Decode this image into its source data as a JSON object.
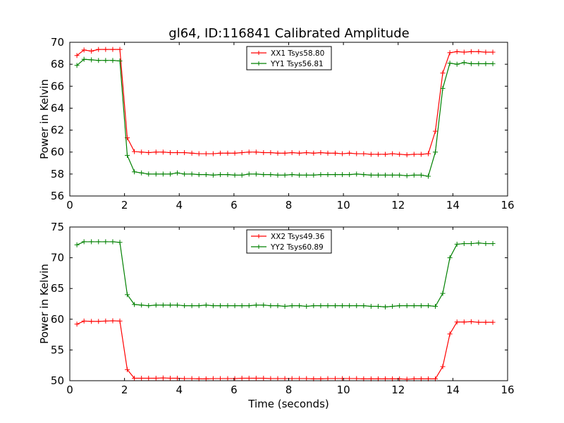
{
  "figure_title": "gl64, ID:116841 Calibrated Amplitude",
  "chart_data": [
    {
      "type": "line",
      "title": "gl64, ID:116841 Calibrated Amplitude",
      "xlabel": "",
      "ylabel": "Power in Kelvin",
      "xlim": [
        0,
        16
      ],
      "ylim": [
        56,
        70
      ],
      "xticks": [
        0,
        2,
        4,
        6,
        8,
        10,
        12,
        14,
        16
      ],
      "yticks": [
        56,
        58,
        60,
        62,
        64,
        66,
        68,
        70
      ],
      "grid": false,
      "legend_position": "top-center",
      "x": [
        0.26,
        0.52,
        0.79,
        1.05,
        1.31,
        1.57,
        1.83,
        2.1,
        2.36,
        2.62,
        2.88,
        3.15,
        3.41,
        3.67,
        3.93,
        4.19,
        4.46,
        4.72,
        4.98,
        5.24,
        5.5,
        5.77,
        6.03,
        6.29,
        6.55,
        6.81,
        7.08,
        7.34,
        7.6,
        7.86,
        8.12,
        8.39,
        8.65,
        8.91,
        9.17,
        9.43,
        9.7,
        9.96,
        10.22,
        10.48,
        10.74,
        11.01,
        11.27,
        11.53,
        11.79,
        12.05,
        12.32,
        12.58,
        12.84,
        13.1,
        13.36,
        13.63,
        13.89,
        14.15,
        14.41,
        14.67,
        14.94,
        15.2,
        15.46
      ],
      "series": [
        {
          "name": "XX1 Tsys58.80",
          "color": "#ff0000",
          "values": [
            68.8,
            69.3,
            69.2,
            69.35,
            69.35,
            69.35,
            69.35,
            61.3,
            60.05,
            60.0,
            59.95,
            60.0,
            60.0,
            59.95,
            59.95,
            59.95,
            59.9,
            59.85,
            59.85,
            59.85,
            59.9,
            59.9,
            59.9,
            59.95,
            60.0,
            60.0,
            59.95,
            59.95,
            59.9,
            59.9,
            59.95,
            59.9,
            59.95,
            59.9,
            59.95,
            59.9,
            59.9,
            59.85,
            59.9,
            59.85,
            59.85,
            59.8,
            59.8,
            59.8,
            59.85,
            59.8,
            59.75,
            59.8,
            59.8,
            59.85,
            61.9,
            67.2,
            69.05,
            69.15,
            69.1,
            69.15,
            69.15,
            69.1,
            69.1
          ]
        },
        {
          "name": "YY1 Tsys56.81",
          "color": "#008000",
          "values": [
            67.9,
            68.45,
            68.4,
            68.35,
            68.35,
            68.35,
            68.3,
            59.7,
            58.2,
            58.1,
            58.0,
            58.0,
            58.0,
            58.0,
            58.1,
            58.0,
            58.0,
            57.95,
            57.95,
            57.9,
            57.95,
            57.95,
            57.9,
            57.9,
            58.0,
            58.0,
            57.95,
            57.95,
            57.9,
            57.9,
            57.95,
            57.9,
            57.9,
            57.9,
            57.95,
            57.95,
            57.95,
            57.95,
            57.95,
            58.0,
            57.95,
            57.9,
            57.9,
            57.9,
            57.9,
            57.9,
            57.85,
            57.9,
            57.9,
            57.8,
            60.0,
            65.8,
            68.1,
            68.0,
            68.15,
            68.05,
            68.05,
            68.05,
            68.05
          ]
        }
      ]
    },
    {
      "type": "line",
      "title": "",
      "xlabel": "Time (seconds)",
      "ylabel": "Power in Kelvin",
      "xlim": [
        0,
        16
      ],
      "ylim": [
        50,
        75
      ],
      "xticks": [
        0,
        2,
        4,
        6,
        8,
        10,
        12,
        14,
        16
      ],
      "yticks": [
        50,
        55,
        60,
        65,
        70,
        75
      ],
      "grid": false,
      "legend_position": "top-center",
      "x": [
        0.26,
        0.52,
        0.79,
        1.05,
        1.31,
        1.57,
        1.83,
        2.1,
        2.36,
        2.62,
        2.88,
        3.15,
        3.41,
        3.67,
        3.93,
        4.19,
        4.46,
        4.72,
        4.98,
        5.24,
        5.5,
        5.77,
        6.03,
        6.29,
        6.55,
        6.81,
        7.08,
        7.34,
        7.6,
        7.86,
        8.12,
        8.39,
        8.65,
        8.91,
        9.17,
        9.43,
        9.7,
        9.96,
        10.22,
        10.48,
        10.74,
        11.01,
        11.27,
        11.53,
        11.79,
        12.05,
        12.32,
        12.58,
        12.84,
        13.1,
        13.36,
        13.63,
        13.89,
        14.15,
        14.41,
        14.67,
        14.94,
        15.2,
        15.46
      ],
      "series": [
        {
          "name": "XX2 Tsys49.36",
          "color": "#ff0000",
          "values": [
            59.2,
            59.7,
            59.65,
            59.65,
            59.7,
            59.75,
            59.7,
            51.8,
            50.4,
            50.4,
            50.4,
            50.4,
            50.45,
            50.4,
            50.4,
            50.35,
            50.35,
            50.3,
            50.3,
            50.35,
            50.35,
            50.35,
            50.35,
            50.4,
            50.4,
            50.4,
            50.4,
            50.35,
            50.35,
            50.35,
            50.35,
            50.35,
            50.35,
            50.3,
            50.3,
            50.35,
            50.35,
            50.35,
            50.35,
            50.35,
            50.3,
            50.3,
            50.3,
            50.3,
            50.3,
            50.3,
            50.25,
            50.3,
            50.3,
            50.3,
            50.3,
            52.3,
            57.6,
            59.55,
            59.55,
            59.6,
            59.5,
            59.5,
            59.5
          ]
        },
        {
          "name": "YY2 Tsys60.89",
          "color": "#008000",
          "values": [
            72.1,
            72.6,
            72.6,
            72.6,
            72.6,
            72.6,
            72.5,
            64.0,
            62.4,
            62.3,
            62.2,
            62.3,
            62.3,
            62.3,
            62.3,
            62.2,
            62.2,
            62.2,
            62.3,
            62.2,
            62.2,
            62.2,
            62.2,
            62.2,
            62.2,
            62.3,
            62.3,
            62.2,
            62.2,
            62.1,
            62.2,
            62.2,
            62.1,
            62.2,
            62.2,
            62.2,
            62.2,
            62.2,
            62.2,
            62.2,
            62.2,
            62.1,
            62.1,
            62.0,
            62.1,
            62.2,
            62.2,
            62.2,
            62.2,
            62.2,
            62.1,
            64.2,
            70.0,
            72.2,
            72.3,
            72.3,
            72.4,
            72.3,
            72.3
          ]
        }
      ]
    }
  ]
}
